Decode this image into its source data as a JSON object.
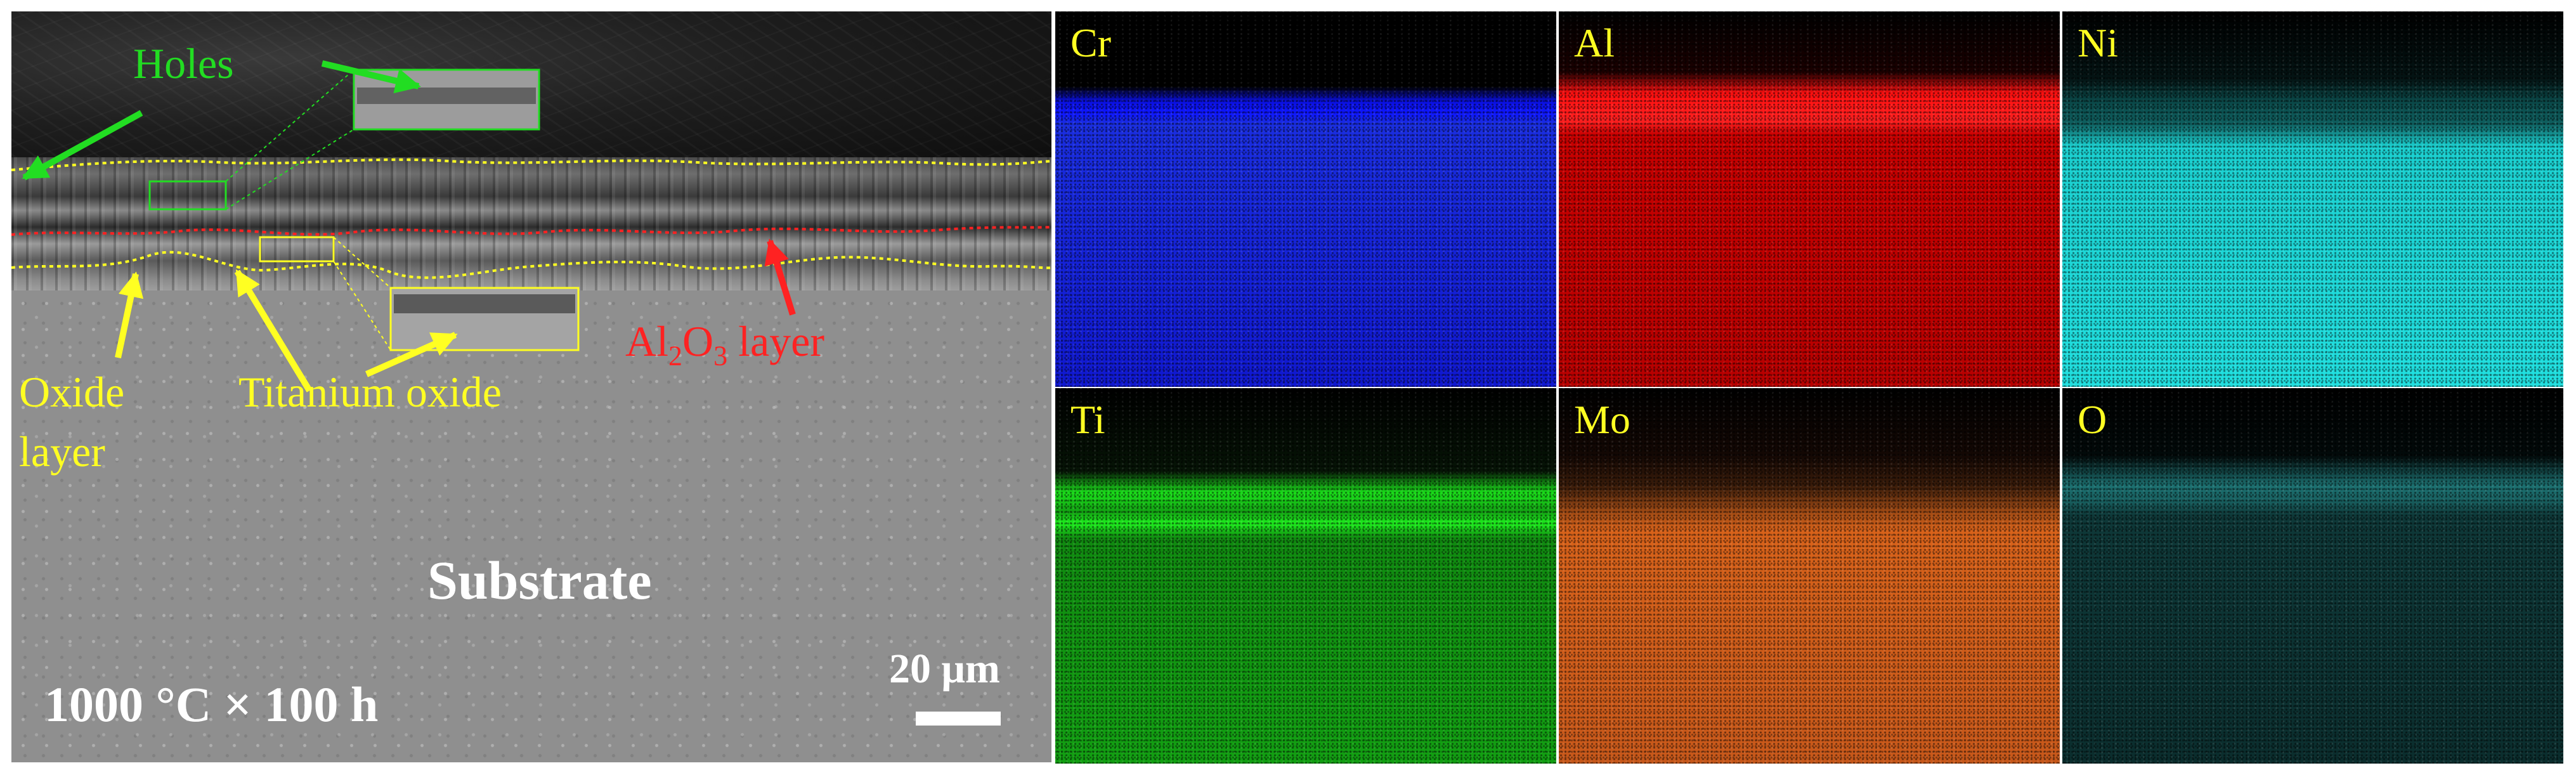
{
  "sem": {
    "labels": {
      "holes": "Holes",
      "oxide_layer_line1": "Oxide",
      "oxide_layer_line2": "layer",
      "titanium_oxide": "Titanium oxide",
      "al2o3_prefix": "Al",
      "al2o3_sub1": "2",
      "al2o3_mid": "O",
      "al2o3_sub2": "3",
      "al2o3_suffix": " layer",
      "substrate": "Substrate",
      "condition": "1000 °C × 100 h",
      "scale": "20 μm"
    },
    "colors": {
      "holes": "#22dd22",
      "oxide": "#ffff22",
      "al2o3": "#ff2222"
    }
  },
  "eds_maps": [
    {
      "element": "Cr",
      "color": "#0a10e0"
    },
    {
      "element": "Al",
      "color": "#e00808"
    },
    {
      "element": "Ni",
      "color": "#19d8d8"
    },
    {
      "element": "Ti",
      "color": "#14c814"
    },
    {
      "element": "Mo",
      "color": "#d8621a"
    },
    {
      "element": "O",
      "color": "#0f4040"
    }
  ]
}
